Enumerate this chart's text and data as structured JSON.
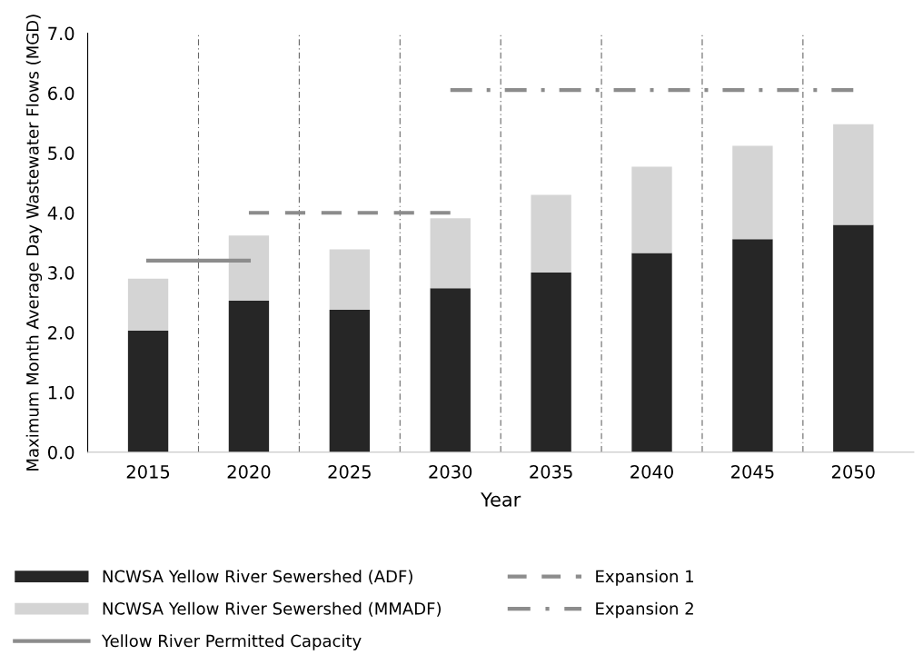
{
  "chart_data": {
    "type": "bar",
    "stacked": true,
    "xlabel": "Year",
    "ylabel": "Maximum Month Average Day Wastewater Flows (MGD)",
    "categories": [
      "2015",
      "2020",
      "2025",
      "2030",
      "2035",
      "2040",
      "2045",
      "2050"
    ],
    "series": [
      {
        "name": "NCWSA Yellow River Sewershed (ADF)",
        "color": "#262626",
        "values": [
          2.03,
          2.53,
          2.38,
          2.74,
          3.0,
          3.33,
          3.56,
          3.8
        ]
      },
      {
        "name": "NCWSA Yellow River Sewershed (MMADF)",
        "color": "#d4d4d4",
        "values": [
          0.87,
          1.09,
          1.01,
          1.17,
          1.3,
          1.44,
          1.56,
          1.68
        ]
      },
      {
        "name": "Yellow River Permitted Capacity",
        "type": "line",
        "color": "#8c8c8c",
        "line_style": "solid",
        "values": [
          3.2,
          3.2,
          null,
          null,
          null,
          null,
          null,
          null
        ]
      },
      {
        "name": "Expansion 1",
        "type": "line",
        "color": "#8c8c8c",
        "line_style": "dashed",
        "values": [
          null,
          4.0,
          4.0,
          4.0,
          null,
          null,
          null,
          null
        ]
      },
      {
        "name": "Expansion 2",
        "type": "line",
        "color": "#8c8c8c",
        "line_style": "dotted",
        "values": [
          null,
          null,
          null,
          6.05,
          6.05,
          6.05,
          6.05,
          6.05
        ]
      }
    ],
    "ylim": [
      0,
      7
    ],
    "yticks": [
      {
        "value": 0,
        "label": "0.0"
      },
      {
        "value": 1,
        "label": "1.0"
      },
      {
        "value": 2,
        "label": "2.0"
      },
      {
        "value": 3,
        "label": "3.0"
      },
      {
        "value": 4,
        "label": "4.0"
      },
      {
        "value": 5,
        "label": "5.0"
      },
      {
        "value": 6,
        "label": "6.0"
      },
      {
        "value": 7,
        "label": "7.0"
      }
    ],
    "grid": "x",
    "legend": "bottom"
  }
}
